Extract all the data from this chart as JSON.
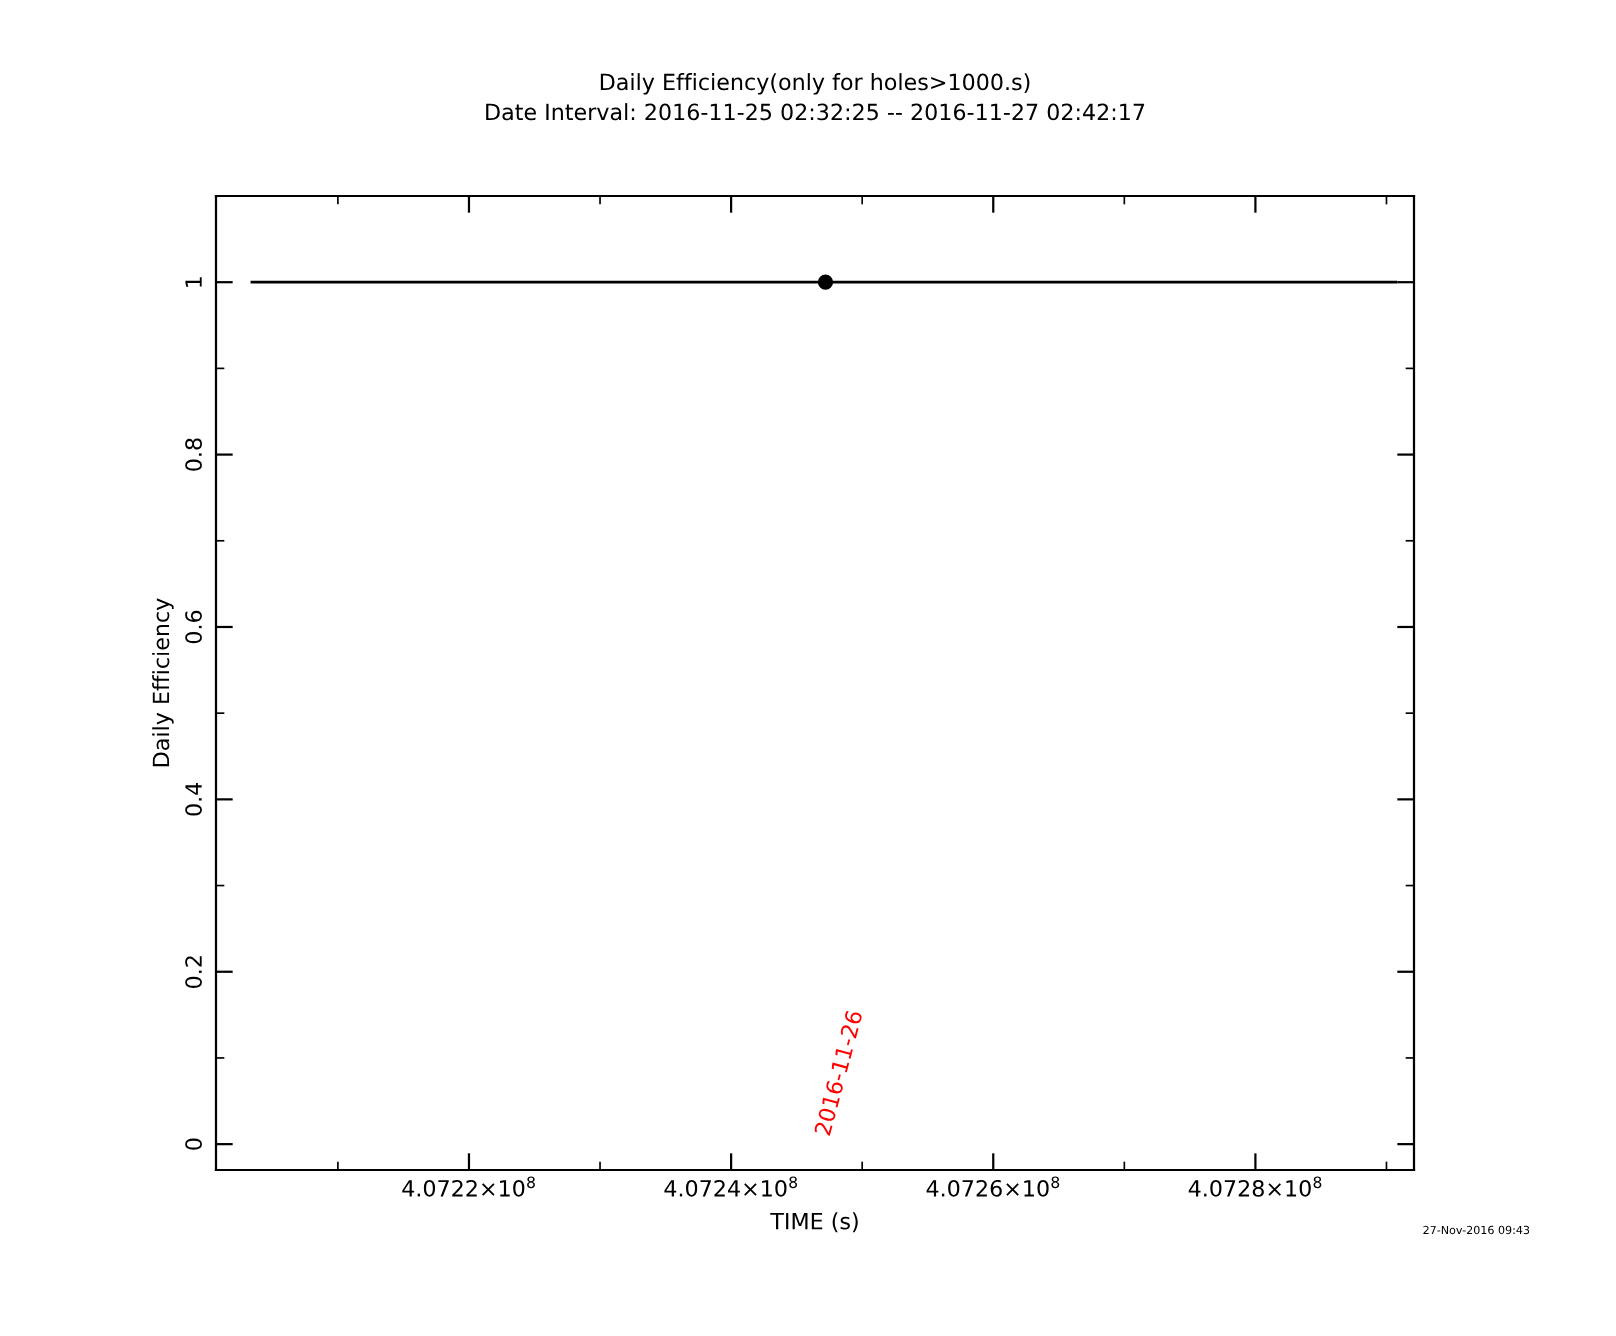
{
  "chart_data": {
    "type": "scatter",
    "title": "Daily Efficiency(only for holes>1000.s)",
    "subtitle": "Date Interval: 2016-11-25 02:32:25 -- 2016-11-27 02:42:17",
    "xlabel": "TIME (s)",
    "ylabel": "Daily Efficiency",
    "x": [
      407247200
    ],
    "values": [
      1
    ],
    "color": "#000000",
    "marker": "circle",
    "xlim": [
      407200700,
      407292100
    ],
    "ylim": [
      -0.03,
      1.1
    ],
    "xticks": [
      {
        "value": 407220000,
        "label": "4.0722×10$^{8}$"
      },
      {
        "value": 407240000,
        "label": "4.0724×10$^{8}$"
      },
      {
        "value": 407260000,
        "label": "4.0726×10$^{8}$"
      },
      {
        "value": 407280000,
        "label": "4.0728×10$^{8}$"
      }
    ],
    "yticks": [
      0,
      0.2,
      0.4,
      0.6,
      0.8,
      1
    ],
    "ref_lines": [
      {
        "axis": "y",
        "value": 1,
        "color": "#000000",
        "line_style": "solid"
      }
    ],
    "annotations": [
      "2016-11-26",
      "27-Nov-2016 09:43"
    ]
  }
}
